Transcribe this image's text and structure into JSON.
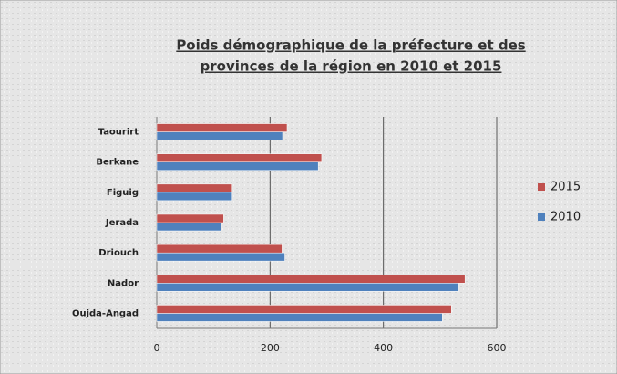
{
  "chart_data": {
    "type": "bar",
    "orientation": "horizontal",
    "title": [
      "Poids démographique de la préfecture et des",
      "provinces de la région en 2010 et 2015"
    ],
    "categories": [
      "Oujda-Angad",
      "Nador",
      "Driouch",
      "Jerada",
      "Figuig",
      "Berkane",
      "Taourirt"
    ],
    "series": [
      {
        "name": "2010",
        "color": "#4f81bd",
        "values": [
          504,
          533,
          226,
          114,
          133,
          285,
          222
        ]
      },
      {
        "name": "2015",
        "color": "#c0504d",
        "values": [
          520,
          544,
          221,
          118,
          133,
          291,
          230
        ]
      }
    ],
    "xlim": [
      0,
      600
    ],
    "xticks": [
      0,
      200,
      400,
      600
    ],
    "grid": true,
    "legend": "right"
  }
}
